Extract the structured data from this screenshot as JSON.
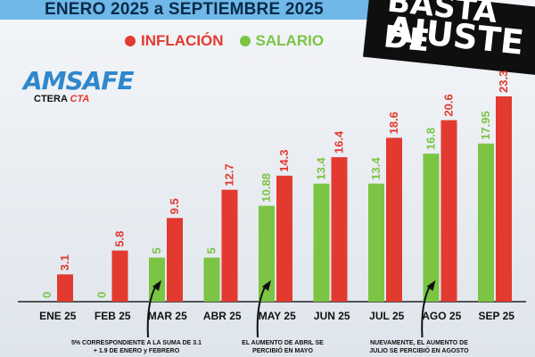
{
  "header": {
    "title": "ENERO 2025 a SEPTIEMBRE 2025"
  },
  "badge": {
    "line1": "BASTA DE",
    "line2": "AJUSTE"
  },
  "legend": [
    {
      "label": "INFLACIÓN",
      "color": "#e33a2f"
    },
    {
      "label": "SALARIO",
      "color": "#7cc444"
    }
  ],
  "logo": {
    "name": "AMSAFE",
    "sub1": "CTERA",
    "sub2": "CTA"
  },
  "chart_data": {
    "type": "bar",
    "categories": [
      "ENE 25",
      "FEB 25",
      "MAR 25",
      "ABR 25",
      "MAY 25",
      "JUN 25",
      "JUL 25",
      "AGO 25",
      "SEP 25"
    ],
    "series": [
      {
        "name": "SALARIO",
        "color": "#7cc444",
        "values": [
          0,
          0,
          5,
          5,
          10.88,
          13.4,
          13.4,
          16.8,
          17.95
        ],
        "labels": [
          "0",
          "0",
          "5",
          "5",
          "10.88",
          "13.4",
          "13.4",
          "16.8",
          "17.95"
        ]
      },
      {
        "name": "INFLACIÓN",
        "color": "#e33a2f",
        "values": [
          3.1,
          5.8,
          9.5,
          12.7,
          14.3,
          16.4,
          18.6,
          20.6,
          23.3
        ],
        "labels": [
          "3.1",
          "5.8",
          "9.5",
          "12.7",
          "14.3",
          "16.4",
          "18.6",
          "20.6",
          "23.3"
        ]
      }
    ],
    "title": "ENERO 2025 a SEPTIEMBRE 2025",
    "xlabel": "",
    "ylabel": "",
    "ylim": [
      0,
      25
    ]
  },
  "notes": [
    {
      "text": "5% CORRESPONDIENTE A LA SUMA DE 3.1 + 1.9 DE ENERO y FEBRERO",
      "target": "MAR 25"
    },
    {
      "text": "EL AUMENTO DE ABRIL SE PERCIBIÓ EN MAYO",
      "target": "MAY 25"
    },
    {
      "text": "NUEVAMENTE, EL AUMENTO DE JULIO SE PERCIBIÓ EN AGOSTO",
      "target": "AGO 25"
    }
  ]
}
